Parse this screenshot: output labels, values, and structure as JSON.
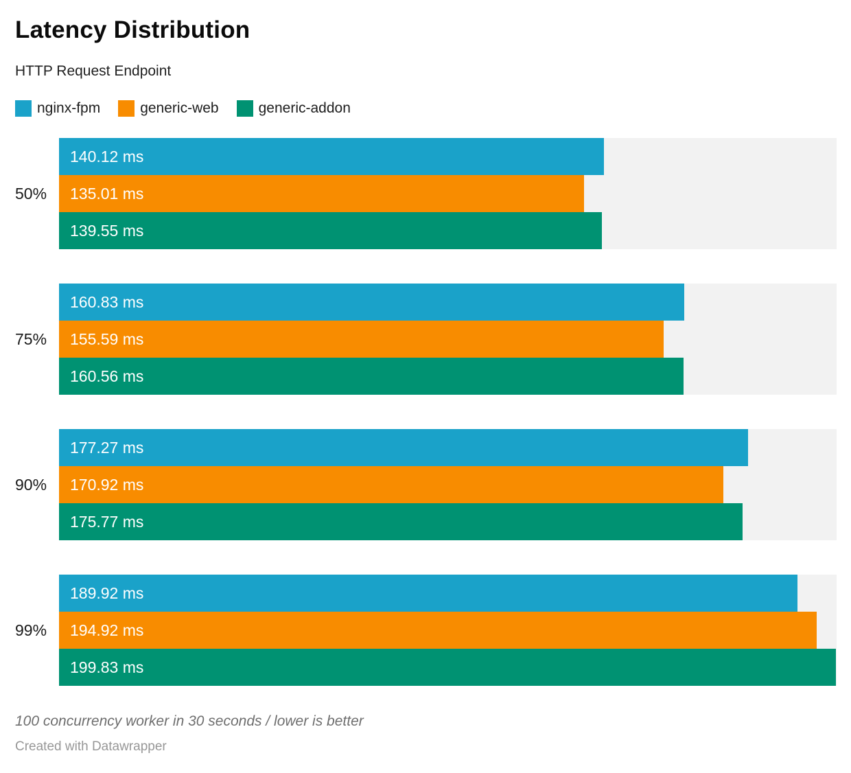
{
  "title": "Latency Distribution",
  "subtitle": "HTTP Request Endpoint",
  "legend": [
    {
      "label": "nginx-fpm",
      "color": "#1aa2c9"
    },
    {
      "label": "generic-web",
      "color": "#f88c00"
    },
    {
      "label": "generic-addon",
      "color": "#009272"
    }
  ],
  "chart_data": {
    "type": "bar",
    "orientation": "horizontal",
    "title": "Latency Distribution",
    "subtitle": "HTTP Request Endpoint",
    "categories": [
      "50%",
      "75%",
      "90%",
      "99%"
    ],
    "series": [
      {
        "name": "nginx-fpm",
        "color": "#1aa2c9",
        "values": [
          140.12,
          160.83,
          177.27,
          189.92
        ]
      },
      {
        "name": "generic-web",
        "color": "#f88c00",
        "values": [
          135.01,
          155.59,
          170.92,
          194.92
        ]
      },
      {
        "name": "generic-addon",
        "color": "#009272",
        "values": [
          139.55,
          160.56,
          175.77,
          199.83
        ]
      }
    ],
    "value_suffix": " ms",
    "value_decimals": 2,
    "xlim": [
      0,
      200
    ],
    "track_color": "#f2f2f2",
    "grid": false,
    "legend_position": "top",
    "bar_label_position": "inside-left",
    "bar_label_color": "#ffffff"
  },
  "footer": {
    "note": "100 concurrency worker in 30 seconds / lower is better",
    "attribution": "Created with Datawrapper"
  }
}
